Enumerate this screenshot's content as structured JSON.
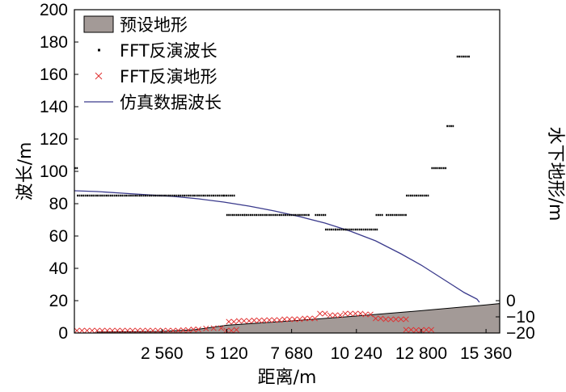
{
  "chart_data": {
    "type": "line",
    "xlabel": "距离/m",
    "ylabel": "波长/m",
    "y2label": "水下地形/m",
    "xlim": [
      -900,
      15900
    ],
    "ylim": [
      0,
      200
    ],
    "y2lim": [
      -20,
      0
    ],
    "x_ticks": [
      {
        "value": 2560,
        "label": "2 560"
      },
      {
        "value": 5120,
        "label": "5 120"
      },
      {
        "value": 7680,
        "label": "7 680"
      },
      {
        "value": 10240,
        "label": "10 240"
      },
      {
        "value": 12800,
        "label": "12 800"
      },
      {
        "value": 15360,
        "label": "15 360"
      }
    ],
    "y_ticks": [
      0,
      20,
      40,
      60,
      80,
      100,
      120,
      140,
      160,
      180,
      200
    ],
    "y2_ticks": [
      {
        "value": 0,
        "label": "0"
      },
      {
        "value": -10,
        "label": "−10"
      },
      {
        "value": -20,
        "label": "−20"
      }
    ],
    "legend": {
      "position": "top-left",
      "entries": [
        {
          "label": "预设地形",
          "marker": "area"
        },
        {
          "label": "FFT反演波长",
          "marker": "dot"
        },
        {
          "label": "FFT反演地形",
          "marker": "x"
        },
        {
          "label": "仿真数据波长",
          "marker": "line"
        }
      ]
    },
    "series": [
      {
        "name": "预设地形",
        "kind": "area",
        "color": "#a39a97",
        "x": [
          0,
          2560,
          3840,
          5120,
          7680,
          10240,
          12800,
          15360,
          15900
        ],
        "y": [
          0.6,
          1.0,
          2.0,
          4.8,
          7.5,
          10.5,
          13.8,
          17.4,
          18.2
        ]
      },
      {
        "name": "FFT反演波长",
        "kind": "segments",
        "color": "#000000",
        "segments": [
          [
            -900,
            -800,
            102
          ],
          [
            -800,
            5000,
            85
          ],
          [
            5000,
            5400,
            85
          ],
          [
            5100,
            5800,
            73
          ],
          [
            5800,
            8400,
            73
          ],
          [
            8600,
            9000,
            73
          ],
          [
            9000,
            9400,
            64
          ],
          [
            9400,
            9800,
            64
          ],
          [
            9800,
            11100,
            64
          ],
          [
            11000,
            11300,
            73
          ],
          [
            11400,
            12200,
            73
          ],
          [
            12200,
            13100,
            85
          ],
          [
            13200,
            13800,
            102
          ],
          [
            13800,
            14100,
            128
          ],
          [
            14200,
            14700,
            171
          ]
        ]
      },
      {
        "name": "FFT反演地形",
        "kind": "scatter",
        "color": "#e03030",
        "marker": "x",
        "points": [
          [
            -800,
            1.5
          ],
          [
            -600,
            1.5
          ],
          [
            -400,
            1.5
          ],
          [
            -200,
            1.5
          ],
          [
            0,
            1.5
          ],
          [
            200,
            1.5
          ],
          [
            400,
            1.5
          ],
          [
            600,
            1.5
          ],
          [
            800,
            1.5
          ],
          [
            1000,
            1.5
          ],
          [
            1200,
            1.5
          ],
          [
            1400,
            1.5
          ],
          [
            1600,
            1.5
          ],
          [
            1800,
            1.5
          ],
          [
            2000,
            1.5
          ],
          [
            2200,
            1.5
          ],
          [
            2400,
            1.5
          ],
          [
            2600,
            1.5
          ],
          [
            2800,
            1.5
          ],
          [
            3000,
            1.5
          ],
          [
            3200,
            1.5
          ],
          [
            3400,
            1.8
          ],
          [
            3600,
            1.8
          ],
          [
            3800,
            2.2
          ],
          [
            4000,
            2.2
          ],
          [
            4300,
            2.8
          ],
          [
            4600,
            3.0
          ],
          [
            4900,
            3.0
          ],
          [
            5100,
            1.5
          ],
          [
            5300,
            1.5
          ],
          [
            5500,
            2.0
          ],
          [
            5200,
            7.0
          ],
          [
            5400,
            7.0
          ],
          [
            5600,
            7.5
          ],
          [
            5800,
            7.5
          ],
          [
            6000,
            7.5
          ],
          [
            6200,
            7.8
          ],
          [
            6400,
            7.8
          ],
          [
            6600,
            7.8
          ],
          [
            6800,
            8.0
          ],
          [
            7000,
            8.0
          ],
          [
            7200,
            8.0
          ],
          [
            7400,
            8.5
          ],
          [
            7600,
            8.5
          ],
          [
            7800,
            8.5
          ],
          [
            8000,
            8.5
          ],
          [
            8200,
            9.0
          ],
          [
            8400,
            9.0
          ],
          [
            8600,
            9.0
          ],
          [
            8800,
            12.0
          ],
          [
            9000,
            12.0
          ],
          [
            9200,
            11.0
          ],
          [
            9400,
            11.0
          ],
          [
            9600,
            11.0
          ],
          [
            9800,
            12.0
          ],
          [
            10000,
            12.0
          ],
          [
            10200,
            12.0
          ],
          [
            10400,
            12.0
          ],
          [
            10600,
            11.5
          ],
          [
            10800,
            11.5
          ],
          [
            11000,
            9.0
          ],
          [
            11200,
            9.0
          ],
          [
            11400,
            8.5
          ],
          [
            11600,
            8.5
          ],
          [
            11800,
            8.5
          ],
          [
            12000,
            8.5
          ],
          [
            12200,
            8.5
          ],
          [
            12200,
            2.0
          ],
          [
            12400,
            2.0
          ],
          [
            12600,
            1.8
          ],
          [
            12800,
            1.8
          ],
          [
            13000,
            2.0
          ],
          [
            13200,
            2.0
          ]
        ]
      },
      {
        "name": "仿真数据波长",
        "kind": "line",
        "color": "#3a3a8c",
        "x": [
          -900,
          0,
          1000,
          2000,
          3000,
          4000,
          5000,
          6000,
          7000,
          8000,
          9000,
          10000,
          11000,
          12000,
          12800,
          13500,
          14000,
          14500,
          15000,
          15100
        ],
        "y": [
          88,
          87.5,
          86.5,
          85.5,
          84.5,
          83.0,
          81.0,
          78.5,
          75.5,
          72.0,
          68.0,
          63.0,
          57.0,
          49.0,
          42.0,
          35.0,
          30.0,
          25.0,
          21.0,
          19.0
        ]
      }
    ]
  }
}
